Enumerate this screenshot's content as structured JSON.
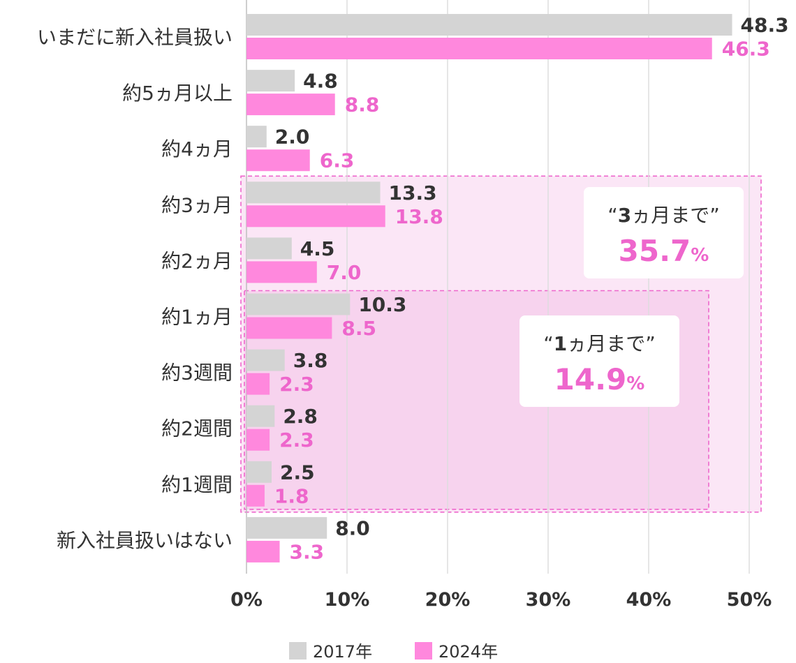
{
  "chart_data": {
    "type": "bar",
    "orientation": "horizontal",
    "categories": [
      "いまだに新入社員扱い",
      "約5ヵ月以上",
      "約4ヵ月",
      "約3ヵ月",
      "約2ヵ月",
      "約1ヵ月",
      "約3週間",
      "約2週間",
      "約1週間",
      "新入社員扱いはない"
    ],
    "series": [
      {
        "name": "2017年",
        "color": "#d4d4d4",
        "label_color": "#333333",
        "values": [
          48.3,
          4.8,
          2.0,
          13.3,
          4.5,
          10.3,
          3.8,
          2.8,
          2.5,
          8.0
        ],
        "labels": [
          "48.3",
          "4.8",
          "2.0",
          "13.3",
          "4.5",
          "10.3",
          "3.8",
          "2.8",
          "2.5",
          "8.0"
        ]
      },
      {
        "name": "2024年",
        "color": "#ff88dd",
        "label_color": "#ee66cc",
        "values": [
          46.3,
          8.8,
          6.3,
          13.8,
          7.0,
          8.5,
          2.3,
          2.3,
          1.8,
          3.3
        ],
        "labels": [
          "46.3",
          "8.8",
          "6.3",
          "13.8",
          "7.0",
          "8.5",
          "2.3",
          "2.3",
          "1.8",
          "3.3"
        ]
      }
    ],
    "xlim": [
      0,
      50
    ],
    "xticks": [
      0,
      10,
      20,
      30,
      40,
      50
    ],
    "xtick_labels": [
      "0%",
      "10%",
      "20%",
      "30%",
      "40%",
      "50%"
    ],
    "grid": "vertical",
    "legend": {
      "position": "bottom",
      "entries": [
        "2017年",
        "2024年"
      ]
    },
    "annotations": [
      {
        "caption_num": "3",
        "caption_rest": "ヵ月まで”",
        "caption_open": "“",
        "value": "35.7",
        "unit": "%",
        "covers_categories": [
          "約3ヵ月",
          "約2ヵ月",
          "約1ヵ月",
          "約3週間",
          "約2週間",
          "約1週間"
        ]
      },
      {
        "caption_num": "1",
        "caption_rest": "ヵ月まで”",
        "caption_open": "“",
        "value": "14.9",
        "unit": "%",
        "covers_categories": [
          "約1ヵ月",
          "約3週間",
          "約2週間",
          "約1週間"
        ]
      }
    ],
    "accent_color": "#ee66cc"
  }
}
